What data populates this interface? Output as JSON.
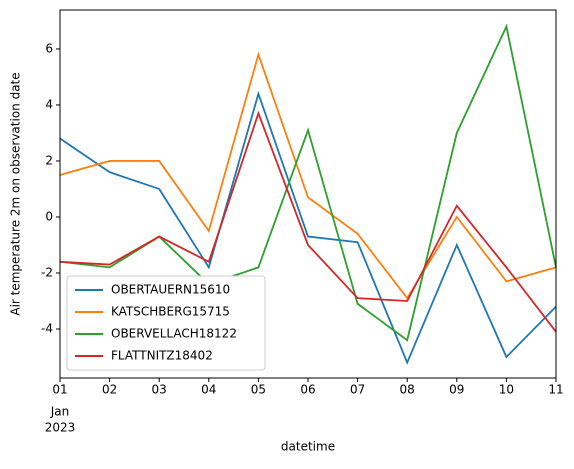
{
  "chart_data": {
    "type": "line",
    "xlabel": "datetime",
    "ylabel": "Air temperature 2m on observation date",
    "categories": [
      "01",
      "02",
      "03",
      "04",
      "05",
      "06",
      "07",
      "08",
      "09",
      "10",
      "11"
    ],
    "x_sublabels": [
      "Jan",
      "2023"
    ],
    "series": [
      {
        "name": "OBERTAUERN15610",
        "color": "#1f77b4",
        "values": [
          2.8,
          1.6,
          1.0,
          -1.8,
          4.4,
          -0.7,
          -0.9,
          -5.2,
          -1.0,
          -5.0,
          -3.2
        ]
      },
      {
        "name": "KATSCHBERG15715",
        "color": "#ff7f0e",
        "values": [
          1.5,
          2.0,
          2.0,
          -0.5,
          5.8,
          0.7,
          -0.6,
          -2.9,
          0.0,
          -2.3,
          -1.8
        ]
      },
      {
        "name": "OBERVELLACH18122",
        "color": "#2ca02c",
        "values": [
          -1.6,
          -1.8,
          -0.7,
          -2.4,
          -1.8,
          3.1,
          -3.1,
          -4.4,
          3.0,
          6.8,
          -1.8
        ]
      },
      {
        "name": "FLATTNITZ18402",
        "color": "#d62728",
        "values": [
          -1.6,
          -1.7,
          -0.7,
          -1.6,
          3.7,
          -1.0,
          -2.9,
          -3.0,
          0.4,
          -1.8,
          -4.1
        ]
      }
    ],
    "ylim": [
      -5.75,
      7.39
    ],
    "yticks": [
      -4,
      -2,
      0,
      2,
      4,
      6
    ],
    "grid": false,
    "legend": "lower left"
  }
}
